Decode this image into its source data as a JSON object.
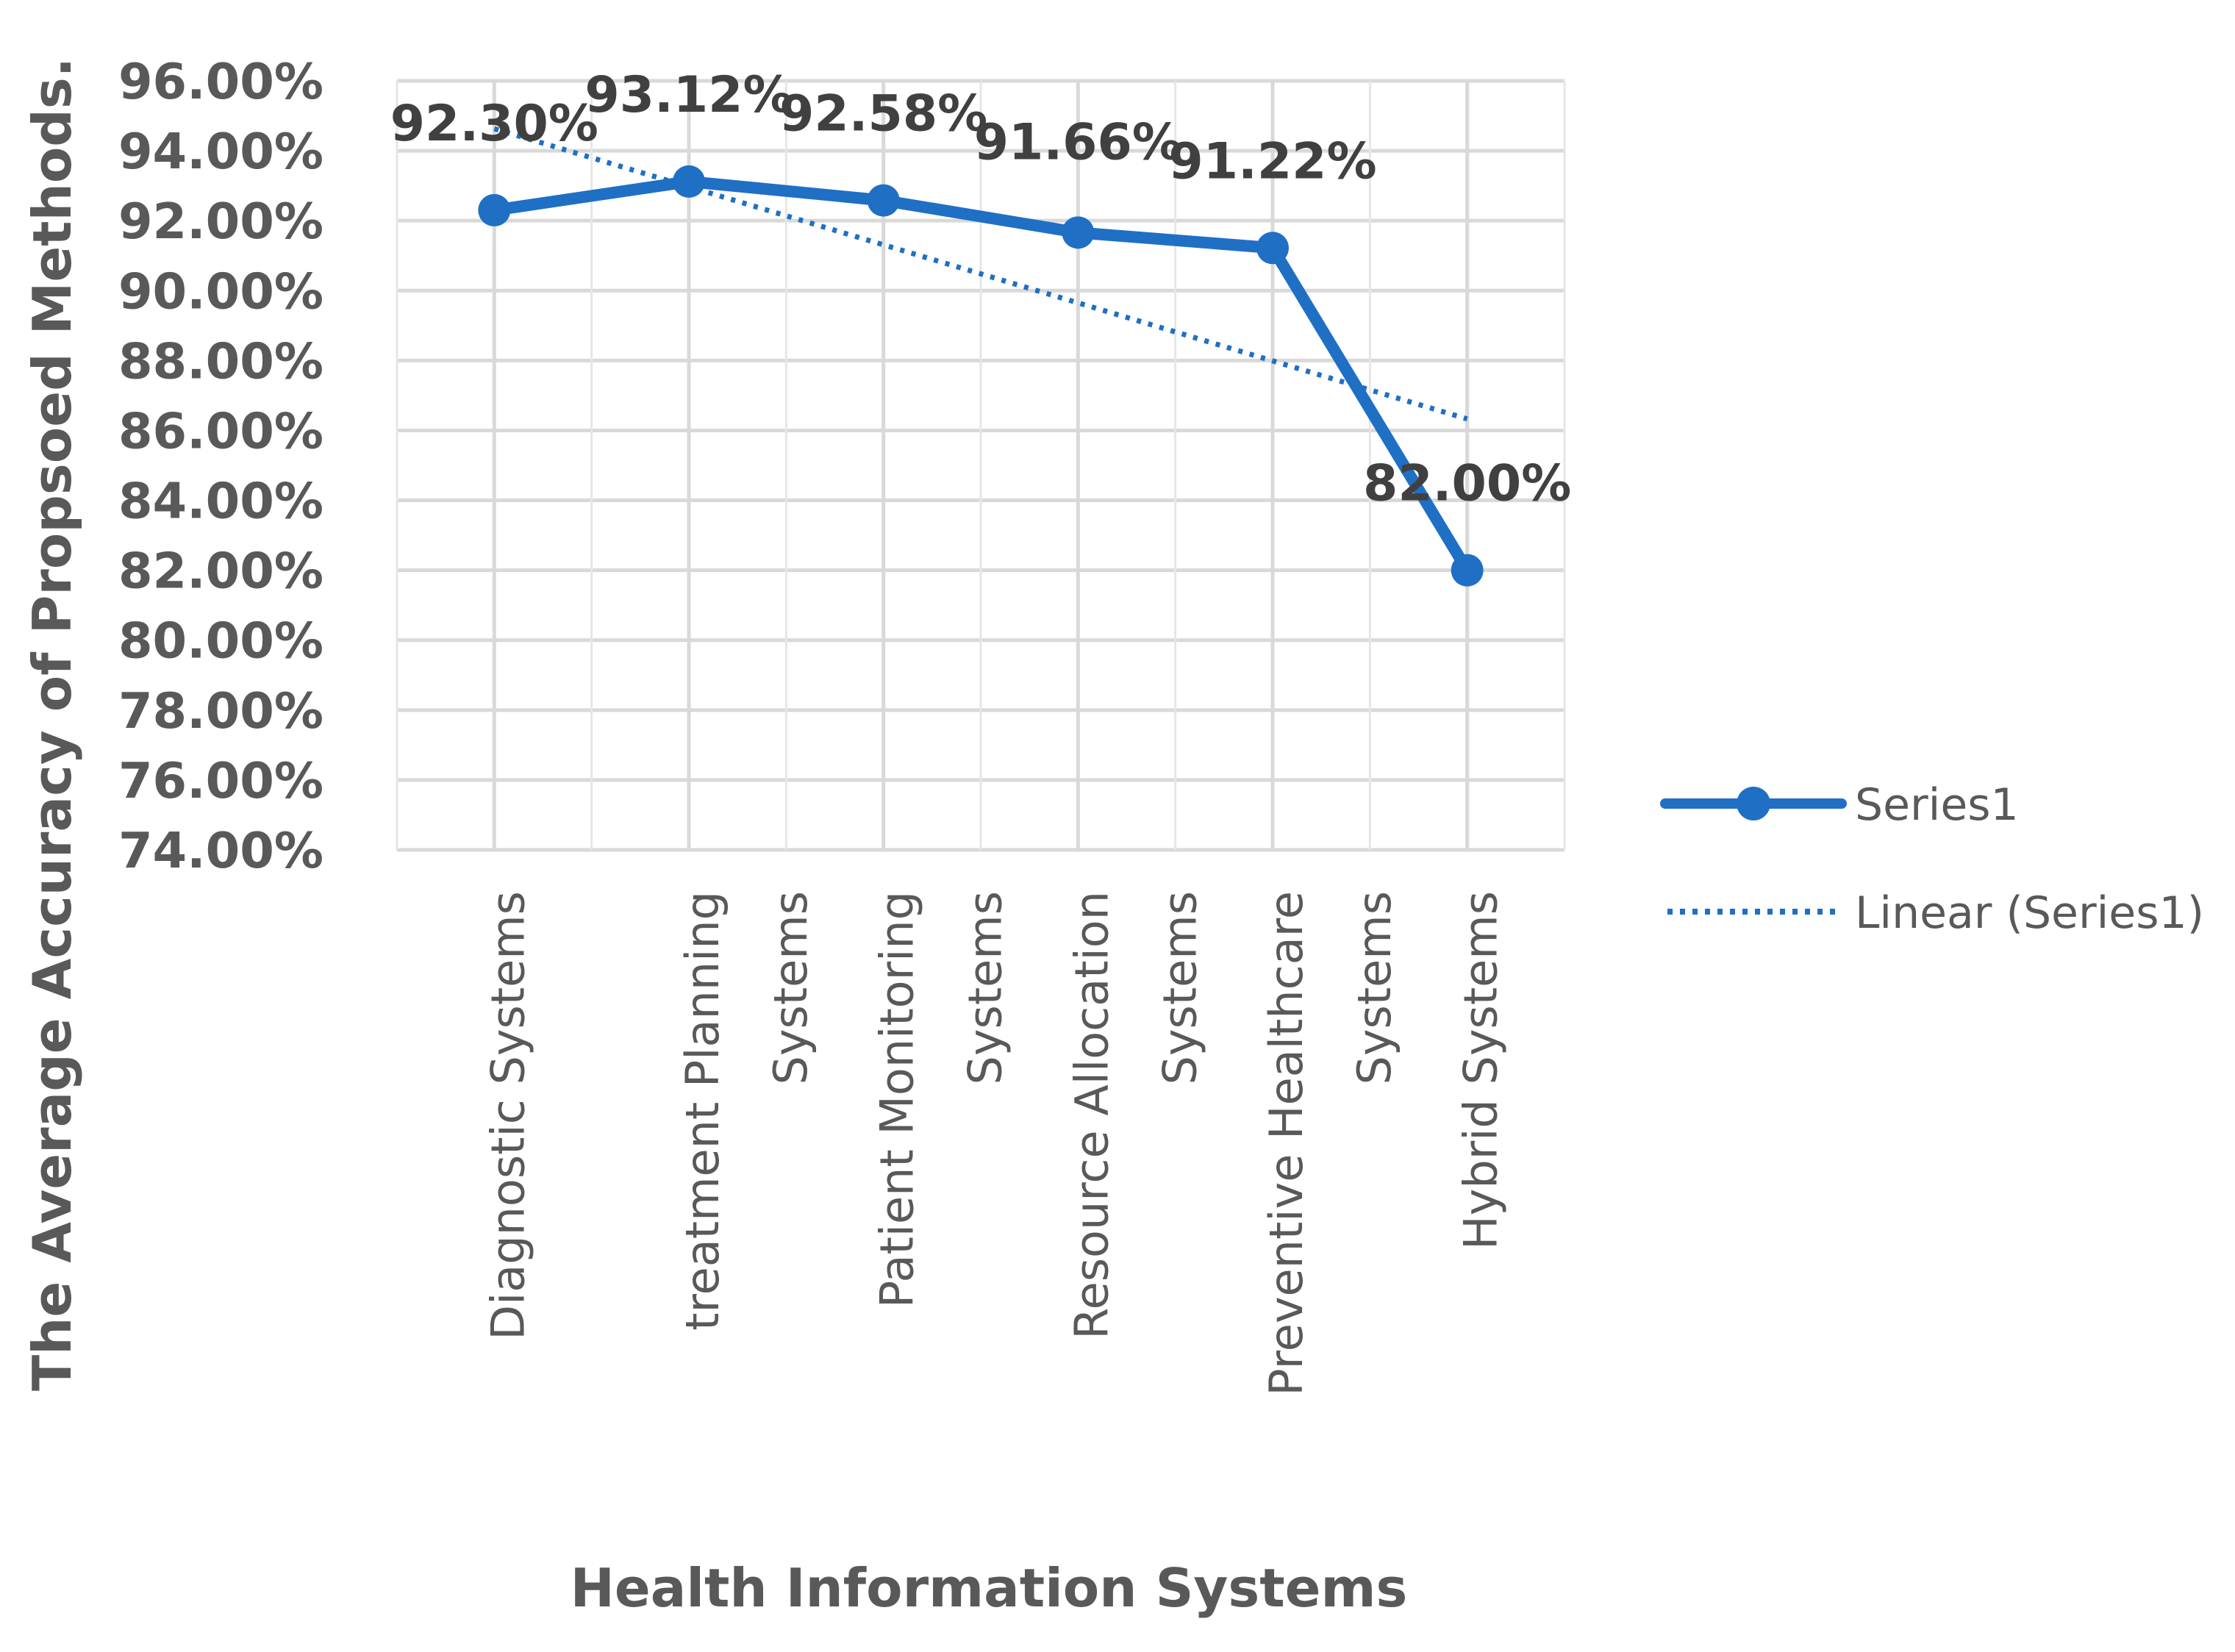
{
  "chart_data": {
    "type": "line",
    "categories": [
      [
        "Diagnostic Systems"
      ],
      [
        "treatment Planning",
        "Systems"
      ],
      [
        "Patient Monitoring",
        "Systems"
      ],
      [
        "Resource Allocation",
        "Systems"
      ],
      [
        "Preventive Healthcare",
        "Systems"
      ],
      [
        "Hybrid Systems"
      ]
    ],
    "series": [
      {
        "name": "Series1",
        "values": [
          92.3,
          93.12,
          92.58,
          91.66,
          91.22,
          82.0
        ],
        "data_labels": [
          "92.30%",
          "93.12%",
          "92.58%",
          "91.66%",
          "91.22%",
          "82.00%"
        ],
        "color": "#1f6fc5",
        "marker": "circle"
      }
    ],
    "trendline": {
      "name": "Linear (Series1)",
      "type": "linear",
      "style": "dotted",
      "color": "#1f6fc5"
    },
    "xlabel": "Health Information Systems",
    "ylabel": "The Average Accuracy of Propsoed Methods.",
    "ylim": [
      74,
      96
    ],
    "ytick_step": 2,
    "ytick_labels": [
      "74.00%",
      "76.00%",
      "78.00%",
      "80.00%",
      "82.00%",
      "84.00%",
      "86.00%",
      "88.00%",
      "90.00%",
      "92.00%",
      "94.00%",
      "96.00%"
    ],
    "grid": true,
    "legend": {
      "position": "right",
      "entries": [
        "Series1",
        "Linear (Series1)"
      ]
    }
  }
}
